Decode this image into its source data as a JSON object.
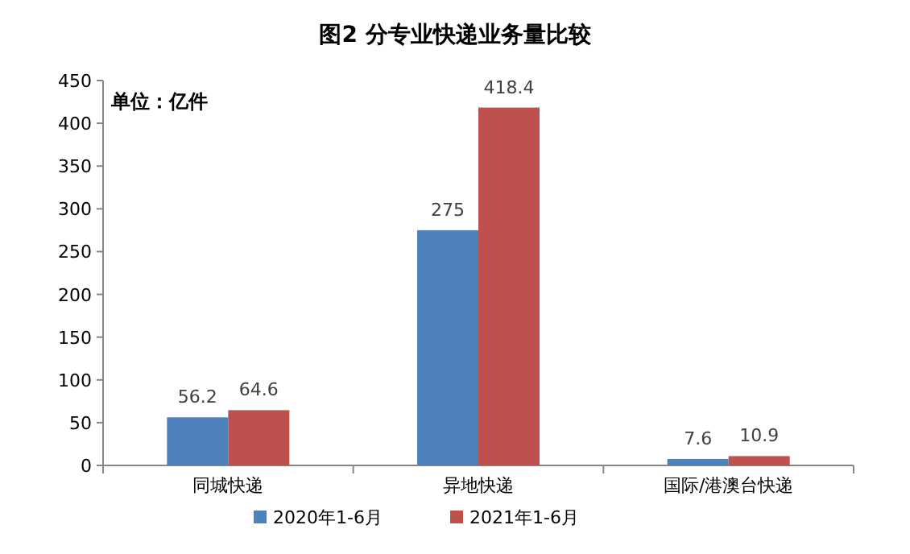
{
  "chart_data": {
    "type": "bar",
    "title": "图2  分专业快递业务量比较",
    "annotations": [
      "单位：亿件"
    ],
    "categories": [
      "同城快递",
      "异地快递",
      "国际/港澳台快递"
    ],
    "series": [
      {
        "name": "2020年1-6月",
        "color": "#4f81bd",
        "values": [
          56.2,
          275,
          7.6
        ]
      },
      {
        "name": "2021年1-6月",
        "color": "#c0504d",
        "values": [
          64.6,
          418.4,
          10.9
        ]
      }
    ],
    "ylim": [
      0,
      450
    ],
    "yticks": [
      0,
      50,
      100,
      150,
      200,
      250,
      300,
      350,
      400,
      450
    ],
    "data_labels": true,
    "legend": "bottom",
    "grid": false
  }
}
